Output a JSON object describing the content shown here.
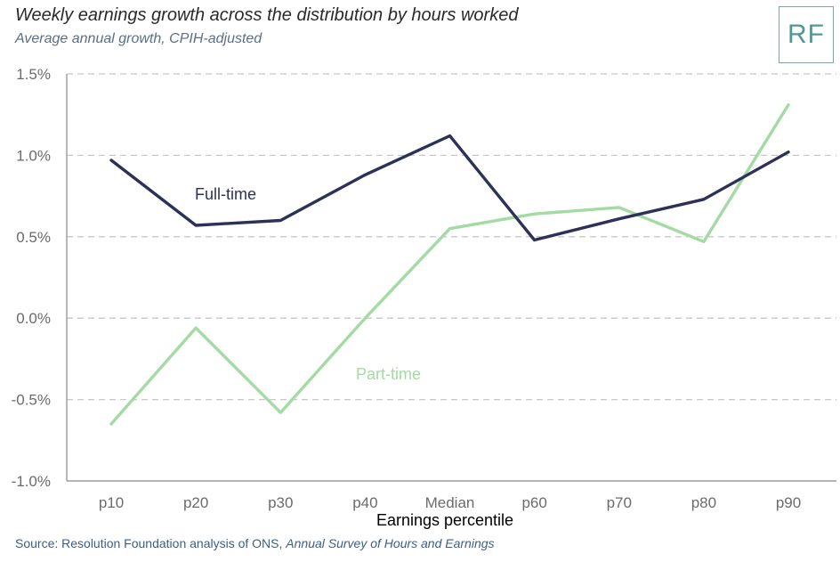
{
  "header": {
    "title": "Weekly earnings growth across the distribution by hours worked",
    "subtitle": "Average annual growth, CPIH-adjusted",
    "logo_text": "RF"
  },
  "source": {
    "prefix": "Source: Resolution Foundation analysis of ONS, ",
    "publication": "Annual Survey of Hours and Earnings"
  },
  "colors": {
    "full_time": "#2d3158",
    "part_time": "#a3dba2",
    "grid": "#c8c8c8",
    "axis": "#888888"
  },
  "chart_data": {
    "type": "line",
    "title": "Weekly earnings growth across the distribution by hours worked",
    "subtitle": "Average annual growth, CPIH-adjusted",
    "xlabel": "Earnings percentile",
    "ylabel": "",
    "categories": [
      "p10",
      "p20",
      "p30",
      "p40",
      "Median",
      "p60",
      "p70",
      "p80",
      "p90"
    ],
    "ylim": [
      -1.0,
      1.5
    ],
    "yticks": [
      -1.0,
      -0.5,
      0.0,
      0.5,
      1.0,
      1.5
    ],
    "ytick_labels": [
      "-1.0%",
      "-0.5%",
      "0.0%",
      "0.5%",
      "1.0%",
      "1.5%"
    ],
    "grid": true,
    "legend": "inline labels",
    "series": [
      {
        "name": "Full-time",
        "values": [
          0.97,
          0.57,
          0.6,
          0.88,
          1.12,
          0.48,
          0.61,
          0.73,
          1.02
        ]
      },
      {
        "name": "Part-time",
        "values": [
          -0.65,
          -0.06,
          -0.58,
          0.0,
          0.55,
          0.64,
          0.68,
          0.47,
          1.31
        ]
      }
    ]
  }
}
